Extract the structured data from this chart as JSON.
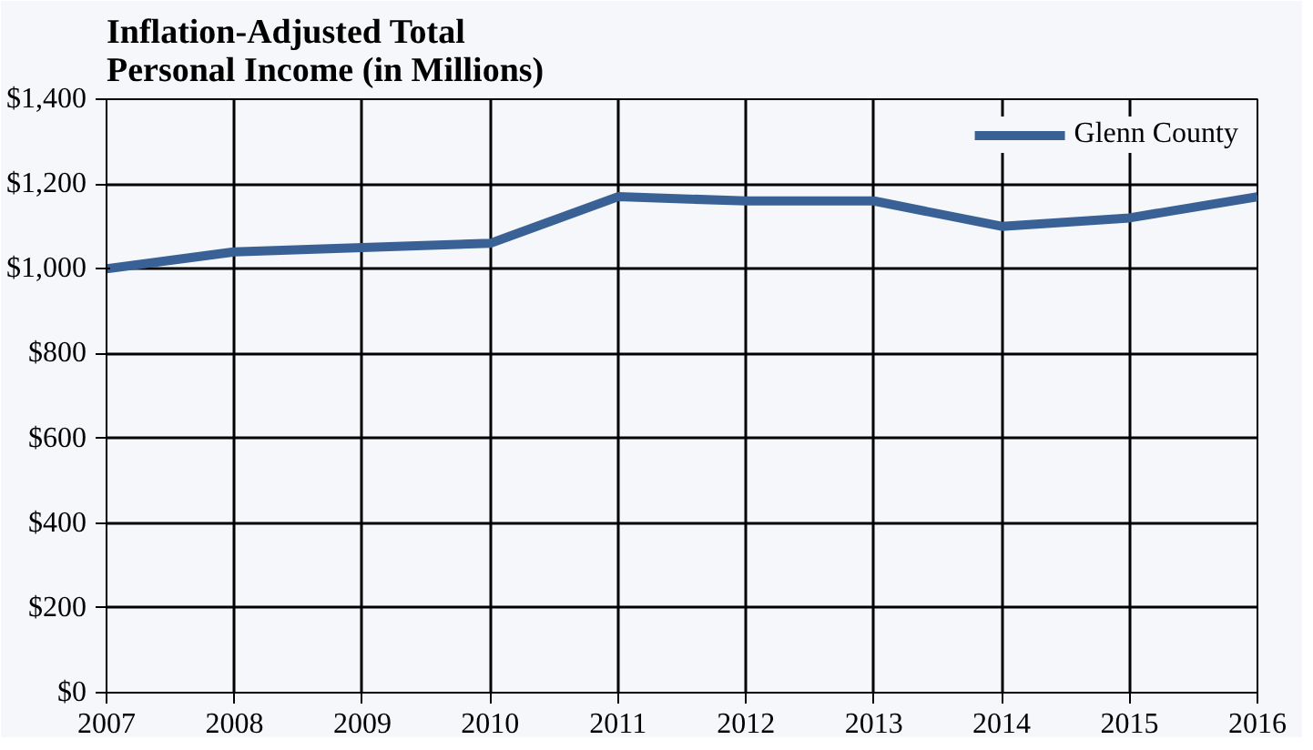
{
  "chart_data": {
    "type": "line",
    "title": "Inflation-Adjusted  Total\nPersonal Income  (in Millions)",
    "x": [
      2007,
      2008,
      2009,
      2010,
      2011,
      2012,
      2013,
      2014,
      2015,
      2016
    ],
    "series": [
      {
        "name": "Glenn County",
        "color": "#3a6195",
        "values": [
          1000,
          1040,
          1050,
          1060,
          1170,
          1160,
          1160,
          1100,
          1120,
          1170
        ]
      }
    ],
    "xlim": [
      2007,
      2016
    ],
    "xticks": [
      2007,
      2008,
      2009,
      2010,
      2011,
      2012,
      2013,
      2014,
      2015,
      2016
    ],
    "ylim": [
      0,
      1400
    ],
    "yticks": [
      {
        "value": 0,
        "label": "$0"
      },
      {
        "value": 200,
        "label": "$200"
      },
      {
        "value": 400,
        "label": "$400"
      },
      {
        "value": 600,
        "label": "$600"
      },
      {
        "value": 800,
        "label": "$800"
      },
      {
        "value": 1000,
        "label": "$1,000"
      },
      {
        "value": 1200,
        "label": "$1,200"
      },
      {
        "value": 1400,
        "label": "$1,400"
      }
    ],
    "grid": true,
    "legend": "top right",
    "marker": "none",
    "line_style": "solid"
  }
}
